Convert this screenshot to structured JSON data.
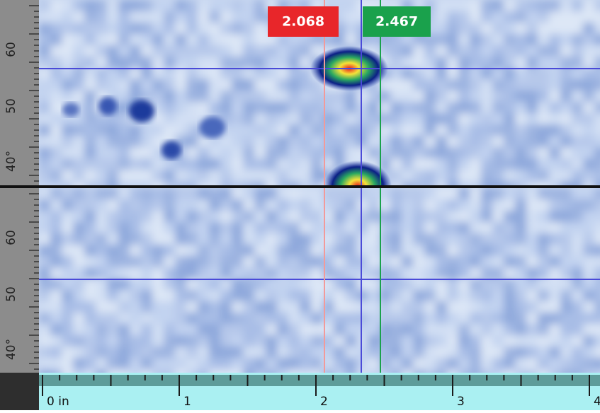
{
  "cursors": [
    {
      "label": "2.068",
      "color": "#e8262a"
    },
    {
      "label": "2.467",
      "color": "#1aa14c"
    }
  ],
  "angle_ruler": {
    "top": [
      "60",
      "50",
      "40°"
    ],
    "bottom": [
      "60",
      "50",
      "40°"
    ]
  },
  "distance_ruler": [
    "0 in",
    "1",
    "2",
    "3",
    "4"
  ]
}
